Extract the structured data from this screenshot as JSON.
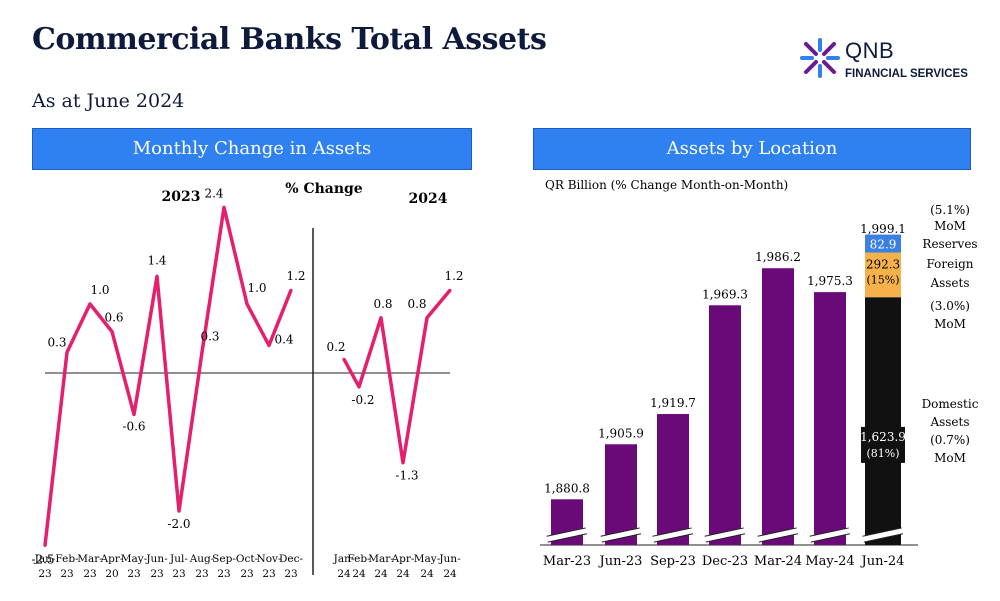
{
  "title": "Commercial Banks Total Assets",
  "subtitle": "As at June 2024",
  "logo": {
    "name": "QNB",
    "sub": "FINANCIAL SERVICES",
    "colors": [
      "#6a1b8f",
      "#2f80f0"
    ]
  },
  "colors": {
    "line": "#e61e6e",
    "bar": "#6a0a78",
    "domestic": "#111111",
    "foreign": "#f5b24a",
    "reserves": "#3b7fe0",
    "header": "#2f80f0"
  },
  "left_panel": {
    "header": "Monthly Change in Assets",
    "label_2023": "2023",
    "label_2024": "2024",
    "label_change": "% Change"
  },
  "right_panel": {
    "header": "Assets by Location",
    "unit_label": "QR Billion (% Change Month-on-Month)",
    "annot_mom": "(5.1%)",
    "annot_mom2": "MoM",
    "annot_reserves": "Reserves",
    "annot_foreign1": "Foreign",
    "annot_foreign2": "Assets",
    "annot_foreign3": "(3.0%)",
    "annot_foreign4": "MoM",
    "annot_dom1": "Domestic",
    "annot_dom2": "Assets",
    "annot_dom3": "(0.7%)",
    "annot_dom4": "MoM"
  },
  "chart_data": [
    {
      "type": "line",
      "title": "Monthly Change in Assets",
      "ylabel": "% Change",
      "segments": [
        {
          "name": "2023",
          "categories": [
            "Jan-23",
            "Feb-23",
            "Mar-23",
            "Apr-20",
            "May-23",
            "Jun-23",
            "Jul-23",
            "Aug-23",
            "Sep-23",
            "Oct-23",
            "Nov-23",
            "Dec-23"
          ],
          "values": [
            -2.5,
            0.3,
            1.0,
            0.6,
            -0.6,
            1.4,
            -2.0,
            0.3,
            2.4,
            1.0,
            0.4,
            1.2
          ]
        },
        {
          "name": "2024",
          "categories": [
            "Jan-24",
            "Feb-24",
            "Mar-24",
            "Apr-24",
            "May-24",
            "Jun-24"
          ],
          "values": [
            0.2,
            -0.2,
            0.8,
            -1.3,
            0.8,
            1.2
          ]
        }
      ],
      "labels": [
        [
          "-2.5",
          "0.3",
          "1.0",
          "0.6",
          "-0.6",
          "1.4",
          "-2.0",
          "0.3",
          "2.4",
          "1.0",
          "0.4",
          "1.2"
        ],
        [
          "0.2",
          "-0.2",
          "0.8",
          "-1.3",
          "0.8",
          "1.2"
        ]
      ],
      "ylim": [
        -2.5,
        2.4
      ]
    },
    {
      "type": "bar",
      "title": "Assets by Location",
      "categories": [
        "Mar-23",
        "Jun-23",
        "Sep-23",
        "Dec-23",
        "Mar-24",
        "May-24",
        "Jun-24"
      ],
      "values": [
        1880.8,
        1905.9,
        1919.7,
        1969.3,
        1986.2,
        1975.3,
        1999.1
      ],
      "value_labels": [
        "1,880.8",
        "1,905.9",
        "1,919.7",
        "1,969.3",
        "1,986.2",
        "1,975.3",
        "1,999.1"
      ],
      "stack_jun24": [
        {
          "name": "Domestic Assets",
          "value": 1623.9,
          "label": "1,623.9",
          "share": "(81%)"
        },
        {
          "name": "Foreign Assets",
          "value": 292.3,
          "label": "292.3",
          "share": "(15%)"
        },
        {
          "name": "Reserves",
          "value": 82.9,
          "label": "82.9"
        }
      ],
      "axis_break": true,
      "ylim": [
        1870,
        2005
      ]
    }
  ]
}
